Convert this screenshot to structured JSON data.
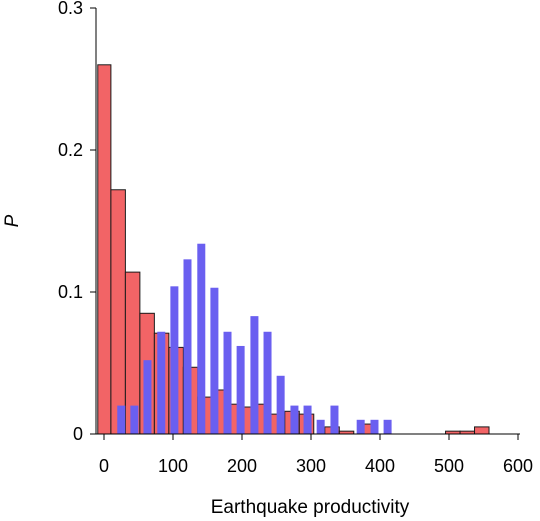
{
  "chart_data": {
    "type": "bar",
    "title": "",
    "xlabel": "Earthquake productivity",
    "ylabel": "P",
    "xlim": [
      -9,
      600
    ],
    "ylim": [
      0,
      0.3
    ],
    "xticks": [
      0,
      100,
      200,
      300,
      400,
      500,
      600
    ],
    "xtick_labels": [
      "0",
      "100",
      "200",
      "300",
      "400",
      "500",
      "600"
    ],
    "yticks": [
      0,
      0.1,
      0.2,
      0.3
    ],
    "ytick_labels": [
      "0",
      "0.1",
      "0.2",
      "0.3"
    ],
    "grid": false,
    "legend": "none",
    "series": [
      {
        "color": "#f26466",
        "edge_color": "#1a1a1a",
        "bin_width": 20,
        "bins": [
          {
            "x0": -9,
            "x1": 10,
            "y": 0.26
          },
          {
            "x0": 10,
            "x1": 31,
            "y": 0.172
          },
          {
            "x0": 31,
            "x1": 52,
            "y": 0.114
          },
          {
            "x0": 52,
            "x1": 73,
            "y": 0.085
          },
          {
            "x0": 73,
            "x1": 94,
            "y": 0.071
          },
          {
            "x0": 94,
            "x1": 115,
            "y": 0.061
          },
          {
            "x0": 115,
            "x1": 136,
            "y": 0.047
          },
          {
            "x0": 136,
            "x1": 157,
            "y": 0.026
          },
          {
            "x0": 157,
            "x1": 178,
            "y": 0.031
          },
          {
            "x0": 178,
            "x1": 199,
            "y": 0.021
          },
          {
            "x0": 199,
            "x1": 220,
            "y": 0.019
          },
          {
            "x0": 220,
            "x1": 241,
            "y": 0.021
          },
          {
            "x0": 241,
            "x1": 262,
            "y": 0.014
          },
          {
            "x0": 262,
            "x1": 283,
            "y": 0.016
          },
          {
            "x0": 283,
            "x1": 304,
            "y": 0.014
          },
          {
            "x0": 320,
            "x1": 341,
            "y": 0.005
          },
          {
            "x0": 341,
            "x1": 362,
            "y": 0.002
          },
          {
            "x0": 375,
            "x1": 396,
            "y": 0.007
          },
          {
            "x0": 495,
            "x1": 516,
            "y": 0.002
          },
          {
            "x0": 516,
            "x1": 537,
            "y": 0.002
          },
          {
            "x0": 537,
            "x1": 558,
            "y": 0.005
          }
        ]
      },
      {
        "color": "#6a5ff0",
        "bar_width": 8,
        "bars": [
          {
            "x": 25,
            "y": 0.02
          },
          {
            "x": 44,
            "y": 0.02
          },
          {
            "x": 63,
            "y": 0.052
          },
          {
            "x": 83,
            "y": 0.072
          },
          {
            "x": 102,
            "y": 0.104
          },
          {
            "x": 121,
            "y": 0.123
          },
          {
            "x": 141,
            "y": 0.134
          },
          {
            "x": 160,
            "y": 0.103
          },
          {
            "x": 179,
            "y": 0.072
          },
          {
            "x": 198,
            "y": 0.062
          },
          {
            "x": 218,
            "y": 0.083
          },
          {
            "x": 237,
            "y": 0.072
          },
          {
            "x": 256,
            "y": 0.041
          },
          {
            "x": 276,
            "y": 0.02
          },
          {
            "x": 295,
            "y": 0.02
          },
          {
            "x": 314,
            "y": 0.01
          },
          {
            "x": 334,
            "y": 0.02
          },
          {
            "x": 372,
            "y": 0.01
          },
          {
            "x": 392,
            "y": 0.01
          },
          {
            "x": 411,
            "y": 0.01
          }
        ]
      }
    ]
  }
}
